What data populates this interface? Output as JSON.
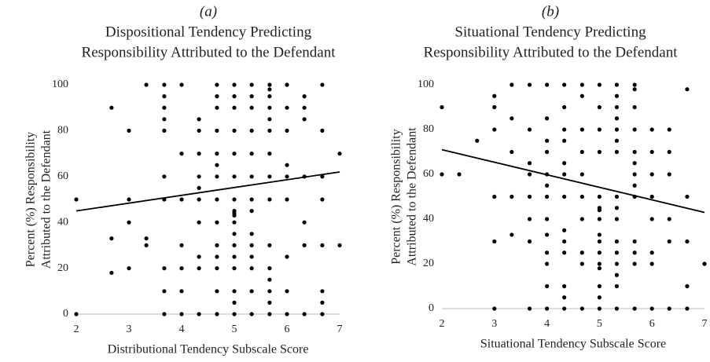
{
  "chart_data": [
    {
      "type": "scatter",
      "label": "(a)",
      "title": [
        "Dispositional Tendency Predicting",
        "Responsibility Attributed to the Defendant"
      ],
      "ylabel": [
        "Percent (%) Responsibility",
        "Attributed to the Defendant"
      ],
      "xlabel": "Distributional Tendency  Subscale Score",
      "color": "#000000",
      "xlim": [
        2,
        7
      ],
      "ylim": [
        0,
        100
      ],
      "xticks": [
        2,
        3,
        4,
        5,
        6,
        7
      ],
      "yticks": [
        0,
        20,
        40,
        60,
        80,
        100
      ],
      "x": [
        2,
        2,
        2.67,
        2.67,
        2.67,
        3,
        3,
        3,
        3,
        3.33,
        3.33,
        3.33,
        3.67,
        3.67,
        3.67,
        3.67,
        3.67,
        3.67,
        3.67,
        3.67,
        3.67,
        3.67,
        4,
        4,
        4,
        4,
        4,
        4,
        4,
        4.33,
        4.33,
        4.33,
        4.33,
        4.33,
        4.33,
        4.33,
        4.33,
        4.33,
        4.33,
        4.67,
        4.67,
        4.67,
        4.67,
        4.67,
        4.67,
        4.67,
        4.67,
        4.67,
        4.67,
        4.67,
        4.67,
        4.67,
        4.67,
        5,
        5,
        5,
        5,
        5,
        5,
        5,
        5,
        5,
        5,
        5,
        5,
        5,
        5,
        5,
        5,
        5,
        5,
        5.33,
        5.33,
        5.33,
        5.33,
        5.33,
        5.33,
        5.33,
        5.33,
        5.33,
        5.33,
        5.33,
        5.33,
        5.33,
        5.33,
        5.67,
        5.67,
        5.67,
        5.67,
        5.67,
        5.67,
        5.67,
        5.67,
        5.67,
        5.67,
        5.67,
        5.67,
        5.67,
        5.67,
        5.67,
        6,
        6,
        6,
        6,
        6,
        6,
        6,
        6,
        6,
        6.33,
        6.33,
        6.33,
        6.33,
        6.33,
        6.33,
        6.33,
        6.67,
        6.67,
        6.67,
        6.67,
        6.67,
        6.67,
        6.67,
        6.67,
        7,
        7
      ],
      "values": [
        50,
        0,
        90,
        33,
        18,
        80,
        50,
        40,
        20,
        100,
        33,
        30,
        100,
        95,
        90,
        85,
        80,
        60,
        50,
        20,
        10,
        0,
        100,
        70,
        50,
        30,
        20,
        10,
        0,
        85,
        80,
        70,
        60,
        55,
        50,
        40,
        25,
        20,
        0,
        100,
        95,
        90,
        80,
        70,
        65,
        60,
        50,
        40,
        30,
        25,
        20,
        10,
        0,
        100,
        95,
        90,
        80,
        70,
        60,
        50,
        45,
        44,
        43,
        40,
        35,
        30,
        25,
        20,
        10,
        5,
        0,
        100,
        95,
        90,
        80,
        70,
        60,
        50,
        45,
        35,
        30,
        25,
        20,
        10,
        0,
        100,
        98,
        95,
        90,
        85,
        80,
        70,
        60,
        50,
        30,
        20,
        15,
        10,
        5,
        0,
        100,
        90,
        80,
        65,
        60,
        50,
        25,
        10,
        0,
        95,
        90,
        85,
        60,
        40,
        30,
        0,
        100,
        80,
        60,
        50,
        30,
        10,
        5,
        0,
        70,
        30
      ],
      "trendline": {
        "x": [
          2,
          7
        ],
        "values": [
          45,
          62
        ]
      }
    },
    {
      "type": "scatter",
      "label": "(b)",
      "title": [
        "Situational Tendency Predicting",
        "Responsibility Attributed to the Defendant"
      ],
      "ylabel": [
        "Percent (%) Responsibility",
        "Attributed to the Defendant"
      ],
      "xlabel": "Situational Tendency  Subscale Score",
      "color": "#000000",
      "xlim": [
        2,
        7
      ],
      "ylim": [
        0,
        100
      ],
      "xticks": [
        2,
        3,
        4,
        5,
        6,
        7
      ],
      "yticks": [
        0,
        20,
        40,
        60,
        80,
        100
      ],
      "x": [
        2,
        2,
        2.33,
        2.67,
        3,
        3,
        3,
        3,
        3,
        3,
        3.33,
        3.33,
        3.33,
        3.33,
        3.33,
        3.67,
        3.67,
        3.67,
        3.67,
        3.67,
        3.67,
        3.67,
        3.67,
        4,
        4,
        4,
        4,
        4,
        4,
        4,
        4,
        4,
        4,
        4,
        4,
        4,
        4.33,
        4.33,
        4.33,
        4.33,
        4.33,
        4.33,
        4.33,
        4.33,
        4.33,
        4.33,
        4.33,
        4.33,
        4.33,
        4.67,
        4.67,
        4.67,
        4.67,
        4.67,
        4.67,
        4.67,
        4.67,
        4.67,
        4.67,
        5,
        5,
        5,
        5,
        5,
        5,
        5,
        5,
        5,
        5,
        5,
        5,
        5,
        5,
        5,
        5,
        5.33,
        5.33,
        5.33,
        5.33,
        5.33,
        5.33,
        5.33,
        5.33,
        5.33,
        5.33,
        5.33,
        5.33,
        5.33,
        5.33,
        5.33,
        5.33,
        5.67,
        5.67,
        5.67,
        5.67,
        5.67,
        5.67,
        5.67,
        5.67,
        5.67,
        5.67,
        5.67,
        5.67,
        5.67,
        6,
        6,
        6,
        6,
        6,
        6,
        6,
        6,
        6.33,
        6.33,
        6.33,
        6.33,
        6.33,
        6.33,
        6.67,
        6.67,
        6.67,
        6.67,
        6.67,
        7
      ],
      "values": [
        90,
        60,
        60,
        75,
        95,
        90,
        80,
        50,
        30,
        0,
        100,
        85,
        70,
        50,
        33,
        100,
        80,
        65,
        60,
        50,
        40,
        30,
        0,
        100,
        85,
        75,
        70,
        60,
        55,
        50,
        40,
        33,
        25,
        20,
        10,
        0,
        100,
        90,
        80,
        75,
        65,
        60,
        50,
        35,
        30,
        25,
        10,
        5,
        0,
        100,
        95,
        80,
        70,
        60,
        50,
        40,
        25,
        20,
        0,
        100,
        90,
        80,
        70,
        50,
        45,
        44,
        40,
        33,
        30,
        25,
        20,
        18,
        10,
        5,
        0,
        100,
        95,
        90,
        85,
        80,
        75,
        70,
        50,
        45,
        40,
        30,
        25,
        20,
        15,
        10,
        0,
        100,
        98,
        90,
        80,
        70,
        65,
        60,
        55,
        50,
        30,
        25,
        20,
        0,
        80,
        70,
        60,
        50,
        40,
        25,
        20,
        0,
        80,
        70,
        60,
        40,
        30,
        0,
        98,
        50,
        30,
        10,
        0,
        20
      ],
      "trendline": {
        "x": [
          2,
          7
        ],
        "values": [
          71,
          43
        ]
      }
    }
  ]
}
